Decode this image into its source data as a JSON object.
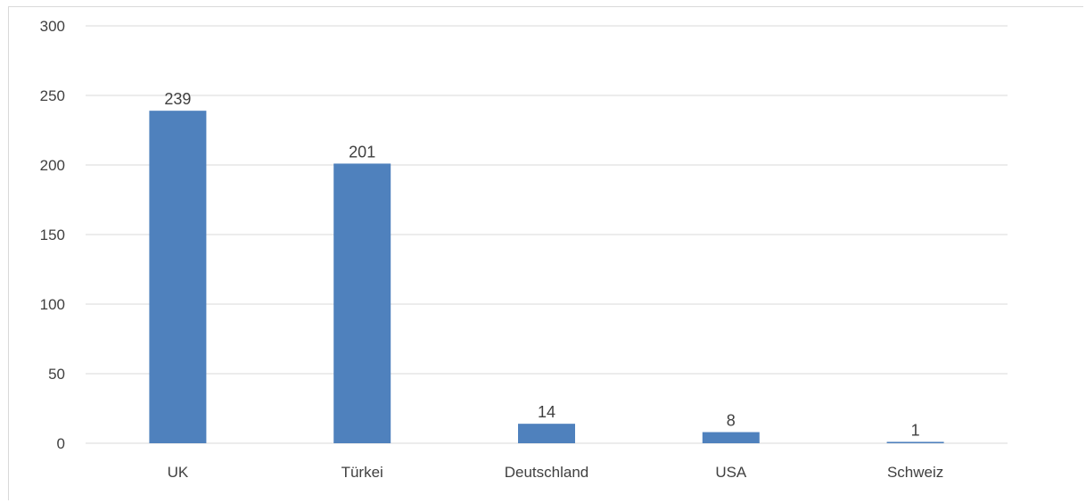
{
  "chart_data": {
    "type": "bar",
    "categories": [
      "UK",
      "Türkei",
      "Deutschland",
      "USA",
      "Schweiz"
    ],
    "values": [
      239,
      201,
      14,
      8,
      1
    ],
    "data_labels": [
      "239",
      "201",
      "14",
      "8",
      "1"
    ],
    "ylim": [
      0,
      300
    ],
    "yticks": [
      0,
      50,
      100,
      150,
      200,
      250,
      300
    ],
    "ytick_labels": [
      "0",
      "50",
      "100",
      "150",
      "200",
      "250",
      "300"
    ],
    "grid": true,
    "legend": "none",
    "title": "",
    "xlabel": "",
    "ylabel": "",
    "colors": {
      "bar": "#4f81bd",
      "grid": "#d9d9d9",
      "text": "#404040"
    }
  }
}
